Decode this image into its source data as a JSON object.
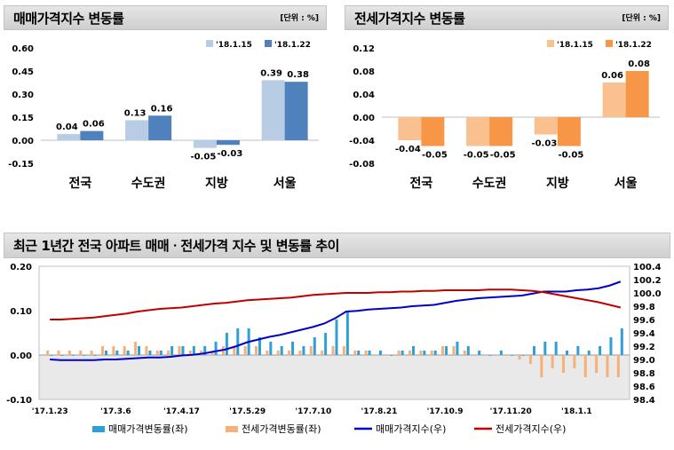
{
  "left_panel": {
    "title": "매매가격지수 변동률",
    "unit": "[단위 : %]"
  },
  "right_panel": {
    "title": "전세가격지수 변동률",
    "unit": "[단위 : %]"
  },
  "bottom_panel": {
    "title": "최근 1년간 전국 아파트 매매ㆍ전세가격 지수 및 변동률 추이"
  },
  "chart_data": [
    {
      "type": "bar",
      "title": "매매가격지수 변동률",
      "categories": [
        "전국",
        "수도권",
        "지방",
        "서울"
      ],
      "series": [
        {
          "name": "'18.1.15",
          "values": [
            0.04,
            0.13,
            -0.05,
            0.39
          ],
          "color": "#b8cce4"
        },
        {
          "name": "'18.1.22",
          "values": [
            0.06,
            0.16,
            -0.03,
            0.38
          ],
          "color": "#4f81bd"
        }
      ],
      "yticks": [
        "0.60",
        "0.45",
        "0.30",
        "0.15",
        "0.00",
        "-0.15"
      ],
      "ylim": [
        -0.15,
        0.6
      ],
      "value_labels": [
        [
          "0.04",
          "0.13",
          "-0.05",
          "0.39"
        ],
        [
          "0.06",
          "0.16",
          "-0.03",
          "0.38"
        ]
      ],
      "legend": "top-right"
    },
    {
      "type": "bar",
      "title": "전세가격지수 변동률",
      "categories": [
        "전국",
        "수도권",
        "지방",
        "서울"
      ],
      "series": [
        {
          "name": "'18.1.15",
          "values": [
            -0.04,
            -0.05,
            -0.03,
            0.06
          ],
          "color": "#fac090"
        },
        {
          "name": "'18.1.22",
          "values": [
            -0.05,
            -0.05,
            -0.05,
            0.08
          ],
          "color": "#f79646"
        }
      ],
      "yticks": [
        "0.12",
        "0.08",
        "0.04",
        "0.00",
        "-0.04",
        "-0.08"
      ],
      "ylim": [
        -0.08,
        0.12
      ],
      "value_labels": [
        [
          "-0.04",
          "-0.05",
          "-0.03",
          "0.06"
        ],
        [
          "-0.05",
          "-0.05",
          "-0.05",
          "0.08"
        ]
      ],
      "legend": "top-right"
    },
    {
      "type": "bar+line",
      "title": "최근 1년간 전국 아파트 매매ㆍ전세가격 지수 및 변동률 추이",
      "x_tick_labels": [
        "'17.1.23",
        "'17.3.6",
        "'17.4.17",
        "'17.5.29",
        "'17.7.10",
        "'17.8.21",
        "'17.10.9",
        "'17.11.20",
        "'18.1.1"
      ],
      "x_tick_index": [
        0,
        6,
        12,
        18,
        24,
        30,
        36,
        42,
        48
      ],
      "left_yticks": [
        "0.20",
        "0.10",
        "0.00",
        "-0.10"
      ],
      "left_ylim": [
        -0.1,
        0.2
      ],
      "right_yticks": [
        "100.4",
        "100.2",
        "100.0",
        "99.8",
        "99.6",
        "99.4",
        "99.2",
        "99.0",
        "98.8",
        "98.6",
        "98.4"
      ],
      "right_ylim": [
        98.4,
        100.4
      ],
      "legend": "bottom",
      "series": [
        {
          "name": "매매가격변동률(좌)",
          "type": "bar",
          "color": "#2f9fd8",
          "values": [
            0.0,
            0.0,
            0.0,
            0.0,
            0.0,
            0.01,
            0.01,
            0.01,
            0.02,
            0.01,
            0.01,
            0.02,
            0.02,
            0.02,
            0.02,
            0.03,
            0.05,
            0.06,
            0.06,
            0.04,
            0.03,
            0.02,
            0.03,
            0.02,
            0.04,
            0.05,
            0.08,
            0.1,
            0.01,
            0.01,
            0.01,
            0.0,
            0.01,
            0.02,
            0.01,
            0.01,
            0.02,
            0.03,
            0.02,
            0.01,
            0.0,
            0.01,
            0.0,
            0.0,
            0.02,
            0.03,
            0.03,
            0.01,
            0.02,
            0.01,
            0.02,
            0.04,
            0.06
          ]
        },
        {
          "name": "전세가격변동률(좌)",
          "type": "bar",
          "color": "#f6b07a",
          "values": [
            0.01,
            0.01,
            0.01,
            0.01,
            0.01,
            0.02,
            0.02,
            0.02,
            0.03,
            0.02,
            0.01,
            0.01,
            0.02,
            0.01,
            0.01,
            0.01,
            0.02,
            0.02,
            0.02,
            0.02,
            0.01,
            0.01,
            0.01,
            0.01,
            0.02,
            0.01,
            0.02,
            0.02,
            0.01,
            0.01,
            0.0,
            0.0,
            0.01,
            0.01,
            0.01,
            0.01,
            0.02,
            0.02,
            0.01,
            0.0,
            0.0,
            0.0,
            0.0,
            -0.01,
            -0.02,
            -0.05,
            -0.03,
            -0.04,
            -0.03,
            -0.05,
            -0.04,
            -0.05,
            -0.05
          ]
        },
        {
          "name": "매매가격지수(우)",
          "type": "line",
          "color": "#0000c8",
          "values": [
            99.0,
            98.99,
            98.99,
            98.99,
            98.99,
            99.0,
            99.0,
            99.01,
            99.02,
            99.03,
            99.03,
            99.04,
            99.06,
            99.07,
            99.09,
            99.12,
            99.15,
            99.2,
            99.26,
            99.3,
            99.34,
            99.37,
            99.41,
            99.45,
            99.49,
            99.54,
            99.62,
            99.72,
            99.73,
            99.75,
            99.76,
            99.77,
            99.78,
            99.8,
            99.81,
            99.82,
            99.85,
            99.88,
            99.9,
            99.92,
            99.93,
            99.94,
            99.95,
            99.96,
            99.99,
            100.02,
            100.02,
            100.02,
            100.04,
            100.05,
            100.07,
            100.11,
            100.17
          ]
        },
        {
          "name": "전세가격지수(우)",
          "type": "line",
          "color": "#c00000",
          "values": [
            99.6,
            99.6,
            99.61,
            99.62,
            99.63,
            99.65,
            99.67,
            99.69,
            99.72,
            99.74,
            99.76,
            99.77,
            99.78,
            99.8,
            99.82,
            99.84,
            99.85,
            99.87,
            99.89,
            99.9,
            99.91,
            99.92,
            99.93,
            99.95,
            99.97,
            99.98,
            99.99,
            100.0,
            100.0,
            100.0,
            100.01,
            100.01,
            100.02,
            100.02,
            100.03,
            100.03,
            100.04,
            100.04,
            100.04,
            100.04,
            100.05,
            100.05,
            100.05,
            100.04,
            100.03,
            100.01,
            99.98,
            99.95,
            99.92,
            99.89,
            99.86,
            99.82,
            99.78
          ]
        }
      ]
    }
  ]
}
